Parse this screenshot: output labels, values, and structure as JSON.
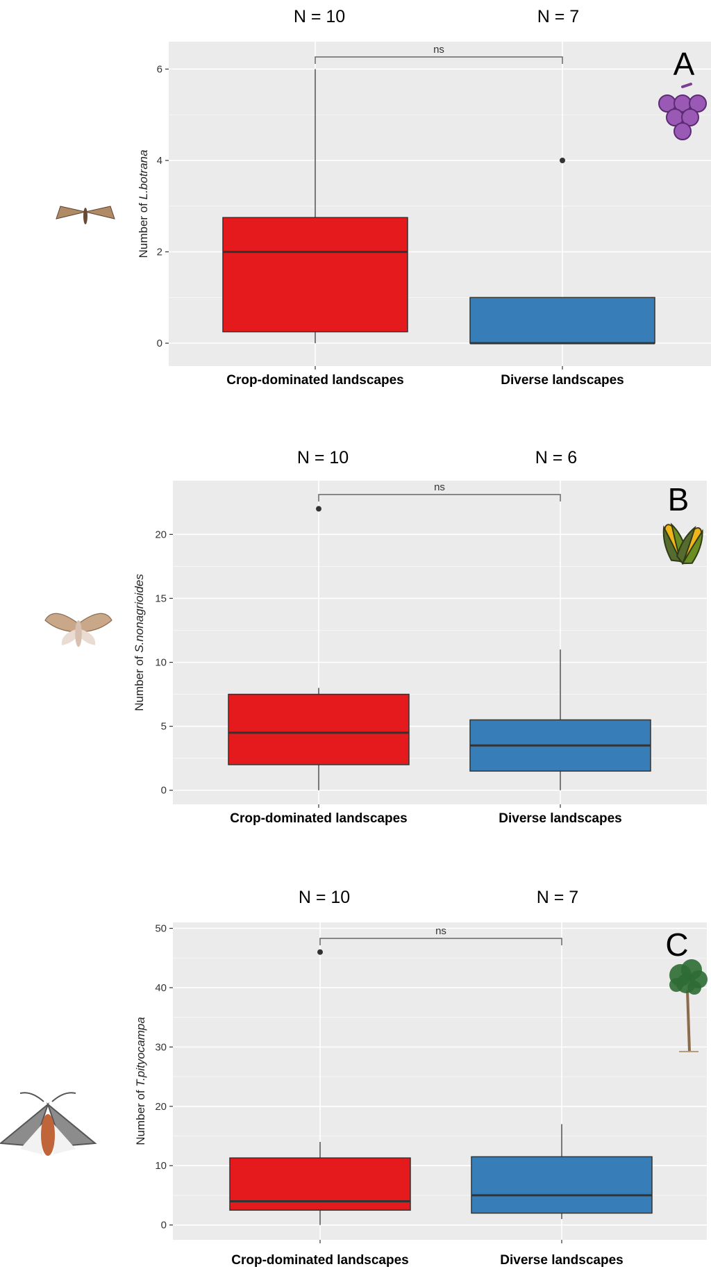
{
  "colors": {
    "crop": "#E41A1C",
    "diverse": "#377EB8",
    "panel_background": "#EBEBEB",
    "grid": "#FFFFFF",
    "box_outline": "#333333",
    "bracket": "#666666"
  },
  "icons": {
    "moth_a": "moth-lobesia-botrana-icon",
    "moth_b": "moth-sesamia-nonagrioides-icon",
    "moth_c": "moth-thaumetopoea-pityocampa-icon",
    "crop_a": "grapes-icon",
    "crop_b": "corn-icon",
    "crop_c": "pine-tree-icon"
  },
  "chart_data": [
    {
      "type": "box",
      "panel_label": "A",
      "ylabel_prefix": "Number of ",
      "ylabel_species": "L.botrana",
      "categories": [
        "Crop-dominated landscapes",
        "Diverse landscapes"
      ],
      "n_labels": [
        "N = 10",
        "N = 7"
      ],
      "significance": "ns",
      "yticks": [
        0,
        2,
        4,
        6
      ],
      "ylim": [
        -0.5,
        6.6
      ],
      "boxes": [
        {
          "q1": 0.25,
          "median": 2,
          "q3": 2.75,
          "whisker_low": 0,
          "whisker_high": 6,
          "outliers": []
        },
        {
          "q1": 0,
          "median": 0,
          "q3": 1,
          "whisker_low": 0,
          "whisker_high": 1,
          "outliers": [
            4
          ]
        }
      ],
      "grid": true
    },
    {
      "type": "box",
      "panel_label": "B",
      "ylabel_prefix": "Number of ",
      "ylabel_species": "S.nonagrioides",
      "categories": [
        "Crop-dominated landscapes",
        "Diverse landscapes"
      ],
      "n_labels": [
        "N = 10",
        "N = 6"
      ],
      "significance": "ns",
      "yticks": [
        0,
        5,
        10,
        15,
        20
      ],
      "ylim": [
        -1.1,
        24.2
      ],
      "boxes": [
        {
          "q1": 2,
          "median": 4.5,
          "q3": 7.5,
          "whisker_low": 0,
          "whisker_high": 8,
          "outliers": [
            22
          ]
        },
        {
          "q1": 1.5,
          "median": 3.5,
          "q3": 5.5,
          "whisker_low": 0,
          "whisker_high": 11,
          "outliers": []
        }
      ],
      "grid": true
    },
    {
      "type": "box",
      "panel_label": "C",
      "ylabel_prefix": "Number of ",
      "ylabel_species": "T.pityocampa",
      "categories": [
        "Crop-dominated landscapes",
        "Diverse landscapes"
      ],
      "n_labels": [
        "N = 10",
        "N = 7"
      ],
      "significance": "ns",
      "yticks": [
        0,
        10,
        20,
        30,
        40,
        50
      ],
      "ylim": [
        -2.5,
        51
      ],
      "boxes": [
        {
          "q1": 2.5,
          "median": 4,
          "q3": 11.3,
          "whisker_low": 0,
          "whisker_high": 14,
          "outliers": [
            46
          ]
        },
        {
          "q1": 2,
          "median": 5,
          "q3": 11.5,
          "whisker_low": 1,
          "whisker_high": 17,
          "outliers": []
        }
      ],
      "grid": true
    }
  ]
}
